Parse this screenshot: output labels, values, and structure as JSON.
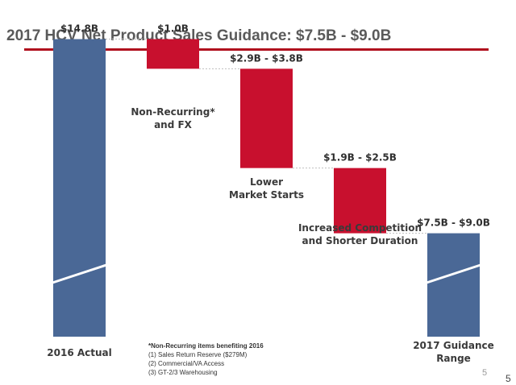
{
  "slide": {
    "title": "2017 HCV Net Product Sales Guidance: $7.5B - $9.0B",
    "page_number_slide": "5",
    "page_number_overlay": "5"
  },
  "footnote": {
    "heading": "*Non-Recurring items benefiting 2016",
    "items": [
      "(1)  Sales Return Reserve ($279M)",
      "(2)  Commercial/VA Access",
      "(3)  GT-2/3 Warehousing"
    ]
  },
  "chart_data": {
    "type": "bar",
    "subtype": "waterfall",
    "title": "2017 HCV Net Product Sales Guidance: $7.5B - $9.0B",
    "unit": "$B",
    "axis_broken": true,
    "categories": [
      "2016 Actual",
      "Non-Recurring* and FX",
      "Lower Market Starts",
      "Increased Competition and Shorter Duration",
      "2017 Guidance Range"
    ],
    "category_label_lines": [
      [
        "2016 Actual"
      ],
      [
        "Non-Recurring*",
        "and FX"
      ],
      [
        "Lower",
        "Market Starts"
      ],
      [
        "Increased Competition",
        "and Shorter Duration"
      ],
      [
        "2017 Guidance",
        "Range"
      ]
    ],
    "bars": [
      {
        "category": "2016 Actual",
        "kind": "total",
        "value": 14.8,
        "label": "$14.8B"
      },
      {
        "category": "Non-Recurring* and FX",
        "kind": "decrease",
        "low": 1.0,
        "high": 1.0,
        "label": "$1.0B"
      },
      {
        "category": "Lower Market Starts",
        "kind": "decrease",
        "low": 2.9,
        "high": 3.8,
        "label": "$2.9B - $3.8B"
      },
      {
        "category": "Increased Competition and Shorter Duration",
        "kind": "decrease",
        "low": 1.9,
        "high": 2.5,
        "label": "$1.9B - $2.5B"
      },
      {
        "category": "2017 Guidance Range",
        "kind": "total",
        "low": 7.5,
        "high": 9.0,
        "label": "$7.5B - $9.0B"
      }
    ],
    "colors": {
      "total": "#4a6896",
      "decrease": "#c8102e",
      "connector": "#bfbfbf",
      "title_rule": "#b0101e"
    }
  }
}
